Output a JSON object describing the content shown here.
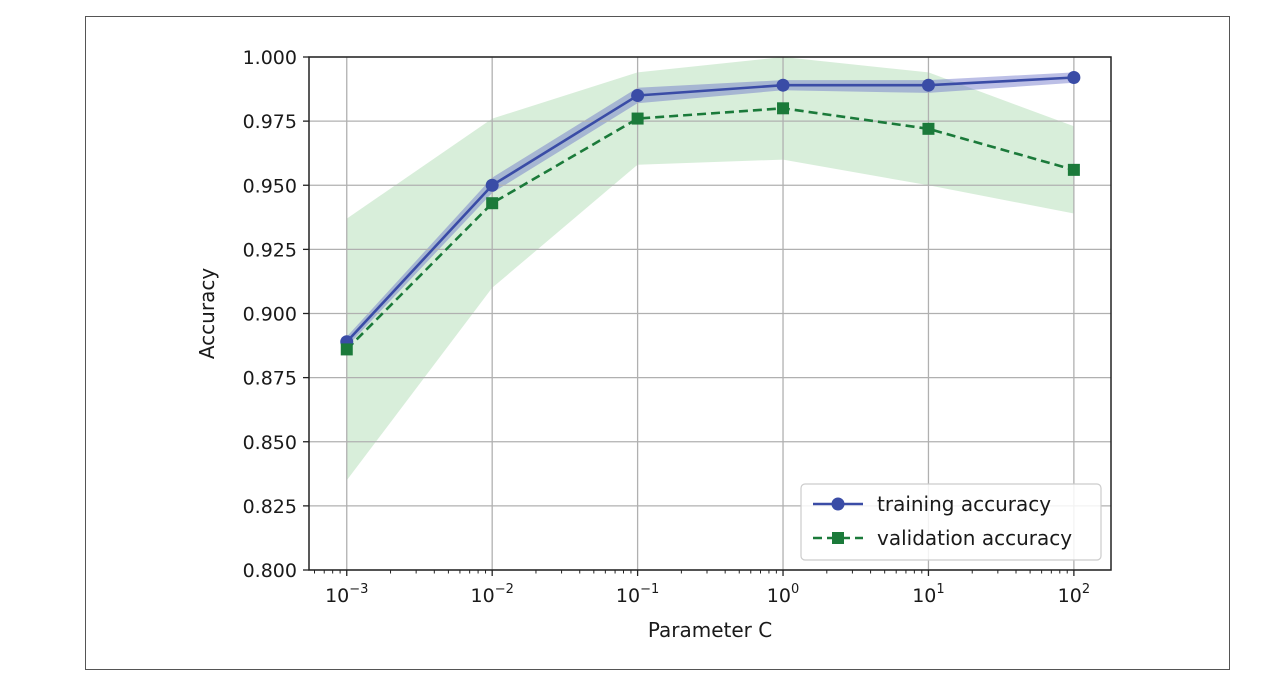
{
  "chart_data": {
    "type": "line",
    "title": "",
    "xlabel": "Parameter C",
    "ylabel": "Accuracy",
    "x_scale": "log",
    "x": [
      0.001,
      0.01,
      0.1,
      1,
      10,
      100
    ],
    "x_tick_labels": [
      {
        "base": "10",
        "exp": "−3"
      },
      {
        "base": "10",
        "exp": "−2"
      },
      {
        "base": "10",
        "exp": "−1"
      },
      {
        "base": "10",
        "exp": "0"
      },
      {
        "base": "10",
        "exp": "1"
      },
      {
        "base": "10",
        "exp": "2"
      }
    ],
    "xlim": [
      0.00055,
      180
    ],
    "ylim": [
      0.8,
      1.0
    ],
    "y_ticks": [
      "0.800",
      "0.825",
      "0.850",
      "0.875",
      "0.900",
      "0.925",
      "0.950",
      "0.975",
      "1.000"
    ],
    "grid": true,
    "legend_position": "bottom-right",
    "series": [
      {
        "name": "training accuracy",
        "color": "#3a4ca6",
        "band_color": "#6a72c8",
        "line_style": "solid",
        "marker": "circle",
        "values": [
          0.889,
          0.95,
          0.985,
          0.989,
          0.989,
          0.992
        ],
        "band_lower": [
          0.887,
          0.947,
          0.982,
          0.987,
          0.986,
          0.99
        ],
        "band_upper": [
          0.891,
          0.953,
          0.988,
          0.991,
          0.991,
          0.994
        ]
      },
      {
        "name": "validation accuracy",
        "color": "#1b7a3a",
        "band_color": "#8fcf95",
        "line_style": "dashed",
        "marker": "square",
        "values": [
          0.886,
          0.943,
          0.976,
          0.98,
          0.972,
          0.956
        ],
        "band_lower": [
          0.835,
          0.91,
          0.958,
          0.96,
          0.95,
          0.939
        ],
        "band_upper": [
          0.937,
          0.976,
          0.994,
          1.0,
          0.994,
          0.973
        ]
      }
    ]
  }
}
